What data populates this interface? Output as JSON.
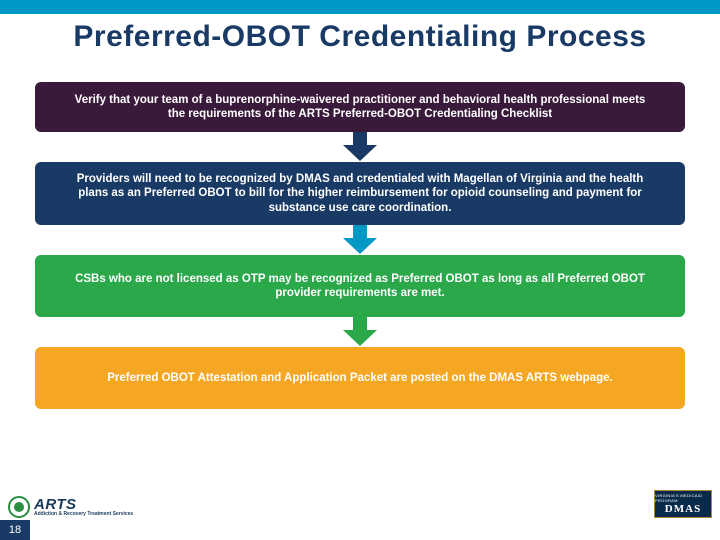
{
  "colors": {
    "top_bar": "#0099c6",
    "title": "#1a3a66",
    "page_num_bg": "#1a3a66"
  },
  "title": {
    "text": "Preferred-OBOT Credentialing Process",
    "fontsize": 30
  },
  "steps": [
    {
      "text": "Verify that your team of a buprenorphine-waivered practitioner and behavioral health professional meets the requirements of the ARTS Preferred-OBOT Credentialing Checklist",
      "bg": "#3a1a3a",
      "height": 50,
      "arrow": "#1a3a66"
    },
    {
      "text": "Providers will need to be recognized by DMAS and credentialed with Magellan of Virginia and the health plans as an Preferred OBOT to bill for the higher reimbursement for opioid counseling and payment for substance use care coordination.",
      "bg": "#1a3a66",
      "height": 62,
      "arrow": "#0099c6"
    },
    {
      "text": "CSBs who are not licensed as OTP may be recognized as Preferred OBOT as long as all Preferred OBOT provider requirements are met.",
      "bg": "#2aa84a",
      "height": 62,
      "arrow": "#2aa84a"
    },
    {
      "text": "Preferred OBOT Attestation and Application Packet are posted on the DMAS ARTS webpage.",
      "bg": "#f5a623",
      "height": 62,
      "arrow": null
    }
  ],
  "footer": {
    "left_logo": {
      "text": "ARTS",
      "sub": "Addiction & Recovery Treatment Services"
    },
    "right_logo": {
      "top": "VIRGINIA'S MEDICAID PROGRAM",
      "main": "DMAS"
    },
    "page_number": "18"
  }
}
